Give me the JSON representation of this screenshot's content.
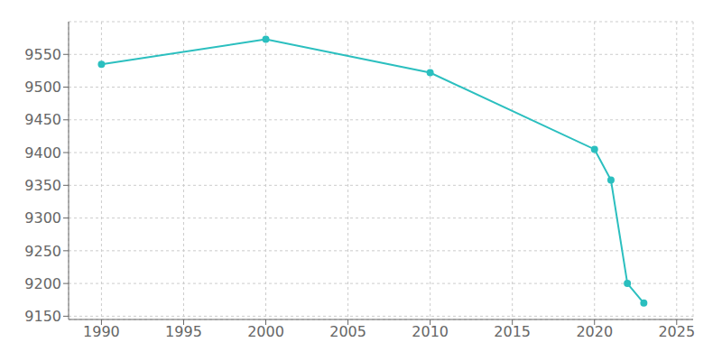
{
  "chart_data": {
    "type": "line",
    "x": [
      1990,
      2000,
      2010,
      2020,
      2021,
      2022,
      2023
    ],
    "values": [
      9535,
      9573,
      9522,
      9405,
      9358,
      9200,
      9170
    ],
    "color": "#2bbfbf",
    "marker": "circle",
    "xlim": [
      1988,
      2026
    ],
    "xticks": [
      1990,
      1995,
      2000,
      2005,
      2010,
      2015,
      2020,
      2025
    ],
    "ylim": [
      9145,
      9600
    ],
    "yticks": [
      9150,
      9200,
      9250,
      9300,
      9350,
      9400,
      9450,
      9500,
      9550
    ],
    "grid": true
  }
}
